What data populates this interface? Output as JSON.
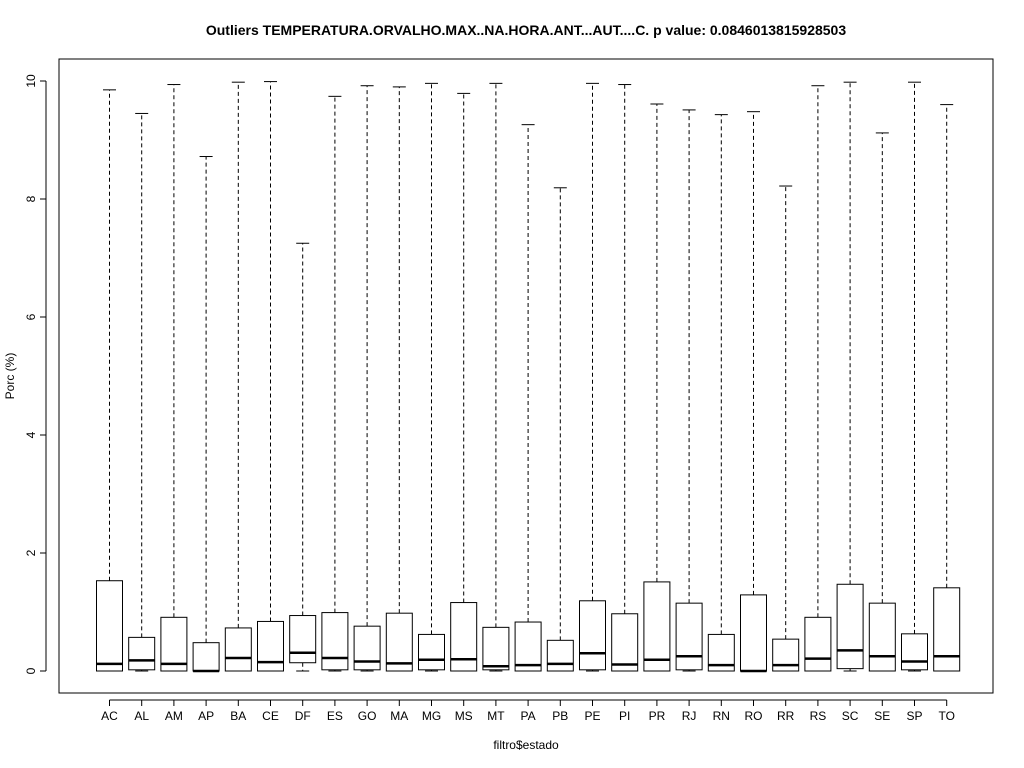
{
  "chart_data": {
    "type": "boxplot",
    "title": "Outliers TEMPERATURA.ORVALHO.MAX..NA.HORA.ANT...AUT....C. p value: 0.0846013815928503",
    "xlabel": "filtro$estado",
    "ylabel": "Porc (%)",
    "ylim": [
      0,
      10
    ],
    "y_ticks": [
      "0",
      "2",
      "4",
      "6",
      "8",
      "10"
    ],
    "y_tick_values": [
      0,
      2,
      4,
      6,
      8,
      10
    ],
    "grid": false,
    "categories": [
      "AC",
      "AL",
      "AM",
      "AP",
      "BA",
      "CE",
      "DF",
      "ES",
      "GO",
      "MA",
      "MG",
      "MS",
      "MT",
      "PA",
      "PB",
      "PE",
      "PI",
      "PR",
      "RJ",
      "RN",
      "RO",
      "RR",
      "RS",
      "SC",
      "SE",
      "SP",
      "TO"
    ],
    "boxes": [
      {
        "min": 0.0,
        "q1": 0.0,
        "median": 0.12,
        "q3": 1.53,
        "max": 9.85
      },
      {
        "min": 0.0,
        "q1": 0.02,
        "median": 0.18,
        "q3": 0.57,
        "max": 9.45
      },
      {
        "min": 0.0,
        "q1": 0.0,
        "median": 0.12,
        "q3": 0.91,
        "max": 9.94
      },
      {
        "min": 0.0,
        "q1": 0.0,
        "median": 0.0,
        "q3": 0.48,
        "max": 8.72
      },
      {
        "min": 0.0,
        "q1": 0.0,
        "median": 0.22,
        "q3": 0.73,
        "max": 9.98
      },
      {
        "min": 0.0,
        "q1": 0.0,
        "median": 0.15,
        "q3": 0.84,
        "max": 9.99
      },
      {
        "min": 0.0,
        "q1": 0.14,
        "median": 0.31,
        "q3": 0.94,
        "max": 7.25
      },
      {
        "min": 0.0,
        "q1": 0.02,
        "median": 0.22,
        "q3": 0.99,
        "max": 9.74
      },
      {
        "min": 0.0,
        "q1": 0.02,
        "median": 0.16,
        "q3": 0.76,
        "max": 9.92
      },
      {
        "min": 0.0,
        "q1": 0.0,
        "median": 0.13,
        "q3": 0.98,
        "max": 9.9
      },
      {
        "min": 0.0,
        "q1": 0.02,
        "median": 0.19,
        "q3": 0.62,
        "max": 9.96
      },
      {
        "min": 0.0,
        "q1": 0.0,
        "median": 0.2,
        "q3": 1.16,
        "max": 9.79
      },
      {
        "min": 0.0,
        "q1": 0.02,
        "median": 0.08,
        "q3": 0.74,
        "max": 9.96
      },
      {
        "min": 0.0,
        "q1": 0.0,
        "median": 0.1,
        "q3": 0.83,
        "max": 9.26
      },
      {
        "min": 0.0,
        "q1": 0.0,
        "median": 0.12,
        "q3": 0.52,
        "max": 8.19
      },
      {
        "min": 0.0,
        "q1": 0.02,
        "median": 0.3,
        "q3": 1.19,
        "max": 9.96
      },
      {
        "min": 0.0,
        "q1": 0.0,
        "median": 0.11,
        "q3": 0.97,
        "max": 9.94
      },
      {
        "min": 0.0,
        "q1": 0.0,
        "median": 0.19,
        "q3": 1.51,
        "max": 9.61
      },
      {
        "min": 0.0,
        "q1": 0.02,
        "median": 0.25,
        "q3": 1.15,
        "max": 9.51
      },
      {
        "min": 0.0,
        "q1": 0.0,
        "median": 0.1,
        "q3": 0.62,
        "max": 9.43
      },
      {
        "min": 0.0,
        "q1": 0.0,
        "median": 0.0,
        "q3": 1.29,
        "max": 9.48
      },
      {
        "min": 0.0,
        "q1": 0.0,
        "median": 0.1,
        "q3": 0.54,
        "max": 8.22
      },
      {
        "min": 0.0,
        "q1": 0.0,
        "median": 0.21,
        "q3": 0.91,
        "max": 9.92
      },
      {
        "min": 0.0,
        "q1": 0.04,
        "median": 0.35,
        "q3": 1.47,
        "max": 9.98
      },
      {
        "min": 0.0,
        "q1": 0.0,
        "median": 0.25,
        "q3": 1.15,
        "max": 9.12
      },
      {
        "min": 0.0,
        "q1": 0.02,
        "median": 0.16,
        "q3": 0.63,
        "max": 9.98
      },
      {
        "min": 0.0,
        "q1": 0.0,
        "median": 0.25,
        "q3": 1.41,
        "max": 9.6
      }
    ],
    "colors": {
      "line": "#000000",
      "box_fill": "#ffffff"
    }
  }
}
